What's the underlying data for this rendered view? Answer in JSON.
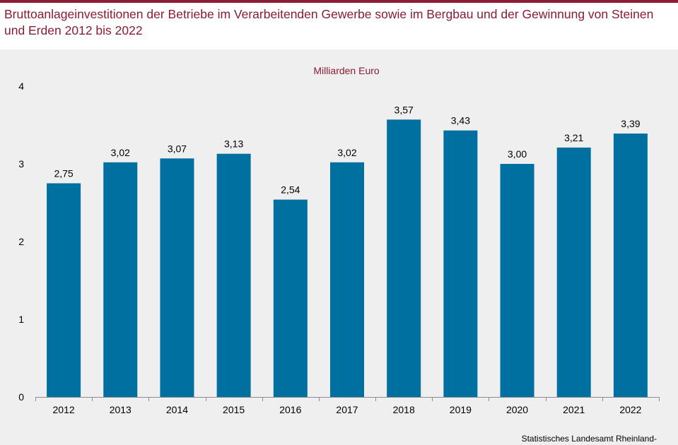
{
  "header": {
    "title": "Bruttoanlageinvestitionen der Betriebe im Verarbeitenden Gewerbe sowie im Bergbau und der Gewinnung von Steinen und Erden 2012 bis 2022"
  },
  "footer": {
    "source": "Statistisches Landesamt Rheinland-"
  },
  "colors": {
    "accent": "#8a1c34",
    "bar": "#0070a0",
    "panel": "#efefef"
  },
  "chart_data": {
    "type": "bar",
    "title": "Bruttoanlageinvestitionen der Betriebe im Verarbeitenden Gewerbe sowie im Bergbau und der Gewinnung von Steinen und Erden 2012 bis 2022",
    "unit_label": "Milliarden Euro",
    "xlabel": "",
    "ylabel": "",
    "categories": [
      "2012",
      "2013",
      "2014",
      "2015",
      "2016",
      "2017",
      "2018",
      "2019",
      "2020",
      "2021",
      "2022"
    ],
    "values": [
      2.75,
      3.02,
      3.07,
      3.13,
      2.54,
      3.02,
      3.57,
      3.43,
      3.0,
      3.21,
      3.39
    ],
    "value_labels": [
      "2,75",
      "3,02",
      "3,07",
      "3,13",
      "2,54",
      "3,02",
      "3,57",
      "3,43",
      "3,00",
      "3,21",
      "3,39"
    ],
    "ylim": [
      0,
      4
    ],
    "yticks": [
      "0",
      "1",
      "2",
      "3",
      "4"
    ],
    "grid": false,
    "legend": "none"
  }
}
